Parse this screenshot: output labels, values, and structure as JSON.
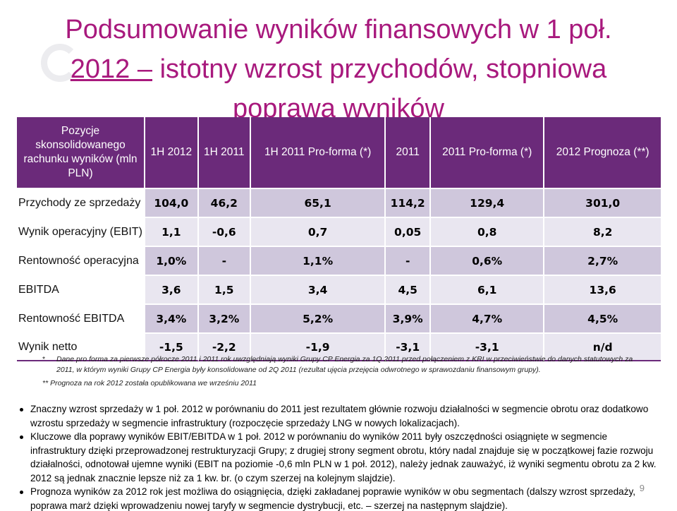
{
  "title": {
    "line1": "Podsumowanie wyników finansowych w 1 poł.",
    "line2_underlined": "2012 –",
    "line2_rest": " istotny wzrost przychodów, stopniowa",
    "line3": "poprawa wyników"
  },
  "table": {
    "headers": [
      "Pozycje skonsolidowanego rachunku wyników (mln PLN)",
      "1H 2012",
      "1H 2011",
      "1H 2011 Pro-forma (*)",
      "2011",
      "2011 Pro-forma (*)",
      "2012 Prognoza (**)"
    ],
    "rows": [
      {
        "label": "Przychody ze sprzedaży",
        "values": [
          "104,0",
          "46,2",
          "65,1",
          "114,2",
          "129,4",
          "301,0"
        ]
      },
      {
        "label": "Wynik operacyjny (EBIT)",
        "values": [
          "1,1",
          "-0,6",
          "0,7",
          "0,05",
          "0,8",
          "8,2"
        ]
      },
      {
        "label": "Rentowność operacyjna",
        "values": [
          "1,0%",
          "-",
          "1,1%",
          "-",
          "0,6%",
          "2,7%"
        ]
      },
      {
        "label": "EBITDA",
        "values": [
          "3,6",
          "1,5",
          "3,4",
          "4,5",
          "6,1",
          "13,6"
        ]
      },
      {
        "label": "Rentowność EBITDA",
        "values": [
          "3,4%",
          "3,2%",
          "5,2%",
          "3,9%",
          "4,7%",
          "4,5%"
        ]
      },
      {
        "label": "Wynik netto",
        "values": [
          "-1,5",
          "-2,2",
          "-1,9",
          "-3,1",
          "-3,1",
          "n/d"
        ]
      }
    ]
  },
  "notes": {
    "note1_mark": "*",
    "note1": "Dane pro forma za pierwsze półrocze 2011 i 2011 rok uwzględniają wyniki Grupy CP Energia za 1Q 2011 przed połączeniem z KRI w przeciwieństwie do danych statutowych za 2011, w którym wyniki Grupy CP Energia były konsolidowane od 2Q 2011 (rezultat ujęcia przejęcia odwrotnego w sprawozdaniu finansowym grupy).",
    "note2": "** Prognoza na rok 2012 została opublikowana we wrześniu 2011"
  },
  "bullets": [
    "Znaczny wzrost sprzedaży w 1 poł. 2012 w porównaniu do 2011 jest rezultatem głównie rozwoju działalności w segmencie obrotu oraz dodatkowo wzrostu sprzedaży w segmencie infrastruktury (rozpoczęcie sprzedaży LNG  w nowych lokalizacjach).",
    "Kluczowe dla poprawy wyników EBIT/EBITDA w 1 poł. 2012 w porównaniu do wyników 2011 były oszczędności osiągnięte w segmencie infrastruktury dzięki przeprowadzonej restrukturyzacji Grupy; z drugiej strony  segment obrotu, który nadal znajduje się w początkowej fazie rozwoju działalności, odnotował ujemne wyniki (EBIT na poziomie -0,6 mln PLN w 1 poł. 2012), należy jednak zauważyć, iż wyniki segmentu obrotu za 2 kw. 2012 są jednak znacznie lepsze niż za 1 kw. br. (o czym szerzej na kolejnym slajdzie).",
    "Prognoza wyników za 2012 rok jest możliwa do osiągnięcia, dzięki zakładanej poprawie wyników w obu segmentach (dalszy wzrost sprzedaży, poprawa marż dzięki wprowadzeniu nowej taryfy w segmencie dystrybucji, etc. – szerzej na następnym slajdzie)."
  ],
  "page_number": "9",
  "colors": {
    "title": "#a8197d",
    "header_bg": "#6b2a7a",
    "row_dark": "#cfc7dc",
    "row_light": "#e9e6f0"
  }
}
